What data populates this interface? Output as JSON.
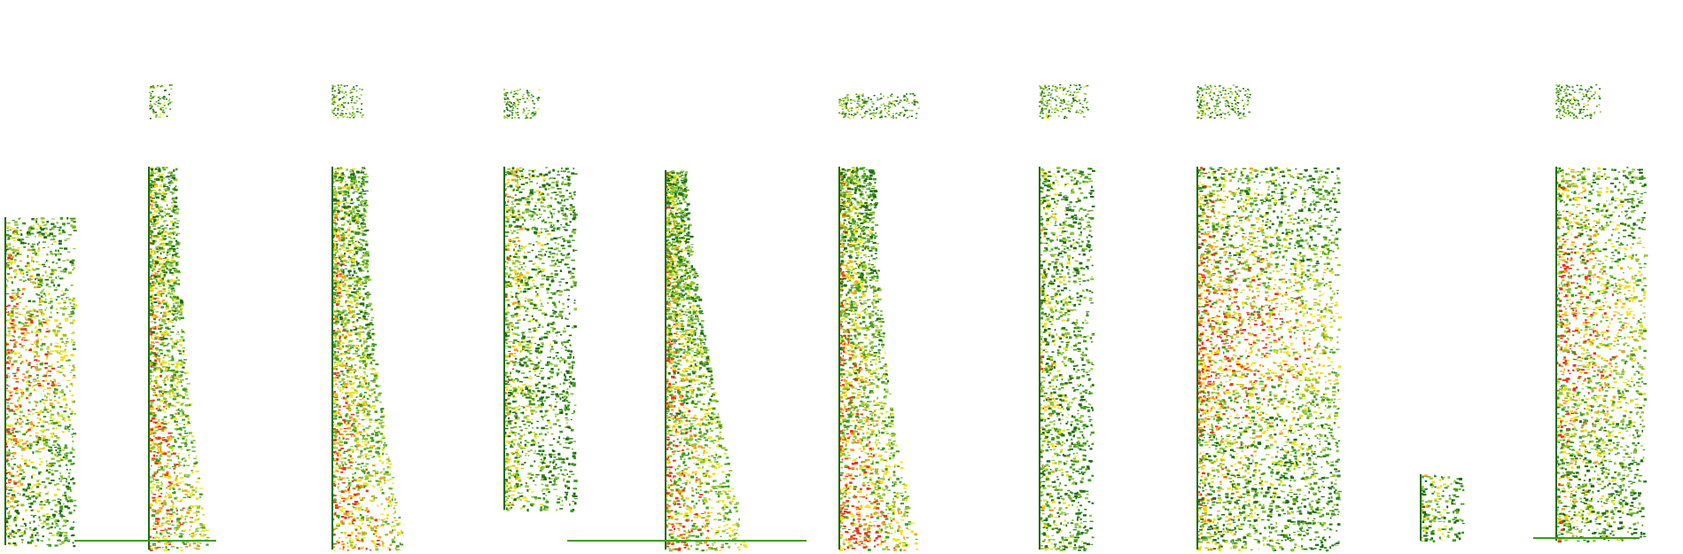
{
  "image": {
    "background": "#ffffff",
    "palette": {
      "dark_green": "#1f6b12",
      "green": "#3f9a1e",
      "light_green": "#8fc43a",
      "yellow": "#f0e21a",
      "orange": "#f7a014",
      "red": "#e8331a"
    },
    "panels": [
      {
        "id": "spectrogram-1"
      },
      {
        "id": "spectrogram-2"
      },
      {
        "id": "spectrogram-3"
      },
      {
        "id": "spectrogram-4"
      },
      {
        "id": "spectrogram-5"
      },
      {
        "id": "spectrogram-6"
      },
      {
        "id": "spectrogram-7"
      },
      {
        "id": "spectrogram-8"
      },
      {
        "id": "spectrogram-9"
      },
      {
        "id": "spectrogram-10"
      }
    ]
  }
}
